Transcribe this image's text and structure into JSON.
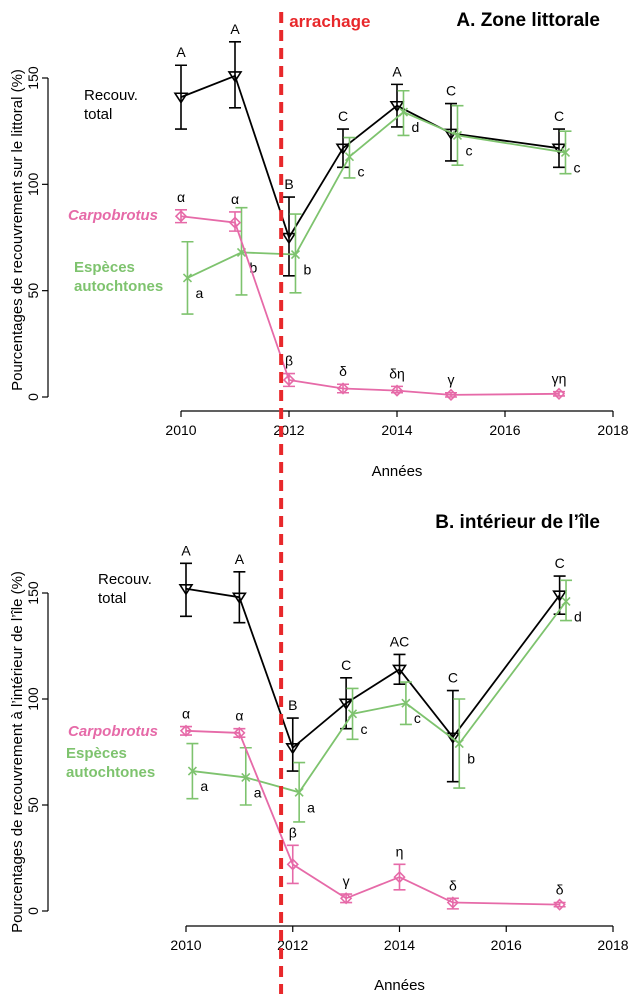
{
  "chart_data": [
    {
      "type": "line",
      "title": "A.  Zone littorale",
      "xlabel": "Années",
      "ylabel": "Pourcentages de recouvrement sur le littoral (%)",
      "xlim": [
        2009.3,
        2018.1
      ],
      "ylim": [
        -3,
        166
      ],
      "x_ticks": [
        "2010",
        "2012",
        "2014",
        "2016",
        "2018"
      ],
      "y_ticks": [
        "0",
        "50",
        "100",
        "150"
      ],
      "series": [
        {
          "name": "Recouv. total",
          "label_lines": [
            "Recouv.",
            "total"
          ],
          "color": "#000000",
          "marker": "triangle-down",
          "points": [
            {
              "x": 2010,
              "y": 141,
              "lo": 126,
              "hi": 156,
              "sig": "A"
            },
            {
              "x": 2011,
              "y": 151,
              "lo": 136,
              "hi": 167,
              "sig": "A"
            },
            {
              "x": 2012,
              "y": 75,
              "lo": 57,
              "hi": 94,
              "sig": "B"
            },
            {
              "x": 2013,
              "y": 117,
              "lo": 108,
              "hi": 126,
              "sig": "C"
            },
            {
              "x": 2014,
              "y": 137,
              "lo": 127,
              "hi": 147,
              "sig": "A"
            },
            {
              "x": 2015,
              "y": 124,
              "lo": 111,
              "hi": 138,
              "sig": "C"
            },
            {
              "x": 2017,
              "y": 117,
              "lo": 108,
              "hi": 126,
              "sig": "C"
            }
          ]
        },
        {
          "name": "Espèces autochtones",
          "label_lines": [
            "Espèces",
            "autochtones"
          ],
          "color": "#7ec36e",
          "marker": "x",
          "points": [
            {
              "x": 2010.12,
              "y": 56,
              "lo": 39,
              "hi": 73,
              "sig": "a"
            },
            {
              "x": 2011.12,
              "y": 68,
              "lo": 48,
              "hi": 89,
              "sig": "b"
            },
            {
              "x": 2012.12,
              "y": 67,
              "lo": 49,
              "hi": 86,
              "sig": "b"
            },
            {
              "x": 2013.12,
              "y": 113,
              "lo": 103,
              "hi": 122,
              "sig": "c"
            },
            {
              "x": 2014.12,
              "y": 134,
              "lo": 123,
              "hi": 144,
              "sig": "d"
            },
            {
              "x": 2015.12,
              "y": 123,
              "lo": 109,
              "hi": 137,
              "sig": "c"
            },
            {
              "x": 2017.12,
              "y": 115,
              "lo": 105,
              "hi": 125,
              "sig": "c"
            }
          ]
        },
        {
          "name": "Carpobrotus",
          "label_lines": [
            "Carpobrotus"
          ],
          "color": "#e66aa8",
          "marker": "diamond",
          "points": [
            {
              "x": 2010,
              "y": 85,
              "lo": 82,
              "hi": 88,
              "sig": "α"
            },
            {
              "x": 2011,
              "y": 82,
              "lo": 78,
              "hi": 87,
              "sig": "α"
            },
            {
              "x": 2012,
              "y": 8,
              "lo": 5,
              "hi": 11,
              "sig": "β"
            },
            {
              "x": 2013,
              "y": 4,
              "lo": 2,
              "hi": 6,
              "sig": "δ"
            },
            {
              "x": 2014,
              "y": 3,
              "lo": 2,
              "hi": 5,
              "sig": "δη"
            },
            {
              "x": 2015,
              "y": 1,
              "lo": 0,
              "hi": 2,
              "sig": "γ"
            },
            {
              "x": 2017,
              "y": 1.5,
              "lo": 0.5,
              "hi": 2.5,
              "sig": "γη"
            }
          ]
        }
      ]
    },
    {
      "type": "line",
      "title": "B.  intérieur de l’île",
      "xlabel": "Années",
      "ylabel": "Pourcentages de recouvrement à l’intérieur de l’île (%)",
      "xlim": [
        2009.3,
        2018.1
      ],
      "ylim": [
        -3,
        166
      ],
      "x_ticks": [
        "2010",
        "2012",
        "2014",
        "2016",
        "2018"
      ],
      "y_ticks": [
        "0",
        "50",
        "100",
        "150"
      ],
      "series": [
        {
          "name": "Recouv. total",
          "label_lines": [
            "Recouv.",
            "total"
          ],
          "color": "#000000",
          "marker": "triangle-down",
          "points": [
            {
              "x": 2010,
              "y": 152,
              "lo": 139,
              "hi": 164,
              "sig": "A"
            },
            {
              "x": 2011,
              "y": 148,
              "lo": 136,
              "hi": 160,
              "sig": "A"
            },
            {
              "x": 2012,
              "y": 77,
              "lo": 66,
              "hi": 91,
              "sig": "B"
            },
            {
              "x": 2013,
              "y": 98,
              "lo": 86,
              "hi": 110,
              "sig": "C"
            },
            {
              "x": 2014,
              "y": 114,
              "lo": 107,
              "hi": 121,
              "sig": "AC"
            },
            {
              "x": 2015,
              "y": 82,
              "lo": 61,
              "hi": 104,
              "sig": "C"
            },
            {
              "x": 2017,
              "y": 149,
              "lo": 140,
              "hi": 158,
              "sig": "C"
            }
          ]
        },
        {
          "name": "Espèces autochtones",
          "label_lines": [
            "Espèces",
            "autochtones"
          ],
          "color": "#7ec36e",
          "marker": "x",
          "points": [
            {
              "x": 2010.12,
              "y": 66,
              "lo": 53,
              "hi": 79,
              "sig": "a"
            },
            {
              "x": 2011.12,
              "y": 63,
              "lo": 50,
              "hi": 77,
              "sig": "a"
            },
            {
              "x": 2012.12,
              "y": 56,
              "lo": 42,
              "hi": 70,
              "sig": "a"
            },
            {
              "x": 2013.12,
              "y": 93,
              "lo": 81,
              "hi": 105,
              "sig": "c"
            },
            {
              "x": 2014.12,
              "y": 98,
              "lo": 88,
              "hi": 108,
              "sig": "c"
            },
            {
              "x": 2015.12,
              "y": 79,
              "lo": 58,
              "hi": 100,
              "sig": "b"
            },
            {
              "x": 2017.12,
              "y": 146,
              "lo": 137,
              "hi": 156,
              "sig": "d"
            }
          ]
        },
        {
          "name": "Carpobrotus",
          "label_lines": [
            "Carpobrotus"
          ],
          "color": "#e66aa8",
          "marker": "diamond",
          "points": [
            {
              "x": 2010,
              "y": 85,
              "lo": 83,
              "hi": 87,
              "sig": "α"
            },
            {
              "x": 2011,
              "y": 84,
              "lo": 82,
              "hi": 86,
              "sig": "α"
            },
            {
              "x": 2012,
              "y": 22,
              "lo": 13,
              "hi": 31,
              "sig": "β"
            },
            {
              "x": 2013,
              "y": 6,
              "lo": 4,
              "hi": 8,
              "sig": "γ"
            },
            {
              "x": 2014,
              "y": 16,
              "lo": 10,
              "hi": 22,
              "sig": "η"
            },
            {
              "x": 2015,
              "y": 4,
              "lo": 1,
              "hi": 6,
              "sig": "δ"
            },
            {
              "x": 2017,
              "y": 3,
              "lo": 2,
              "hi": 4,
              "sig": "δ"
            }
          ]
        }
      ]
    }
  ],
  "annotation": {
    "label": "arrachage",
    "x": 2011.8,
    "color": "#e8282b",
    "style": "dashed"
  }
}
